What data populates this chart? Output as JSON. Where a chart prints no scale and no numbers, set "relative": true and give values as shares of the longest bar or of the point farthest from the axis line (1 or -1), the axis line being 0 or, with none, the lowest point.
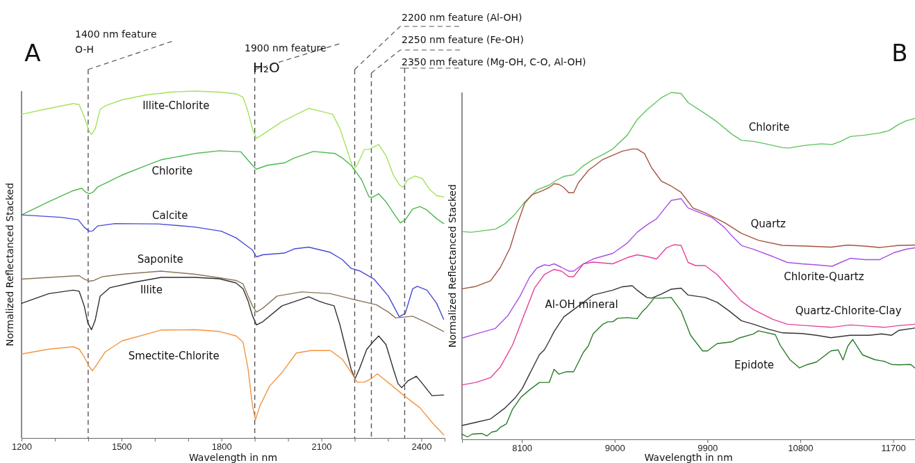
{
  "chart_data": [
    {
      "type": "line",
      "title": "A",
      "xlabel": "Wavelength in nm",
      "ylabel": "Normalized Reflectanced Stacked",
      "relative": true,
      "legend": false,
      "tick_labels": "x",
      "line_style": "solid",
      "xlim": [
        1200,
        2470
      ],
      "xticks": [
        1200,
        {
          "value": 1300,
          "label": null
        },
        {
          "value": 1400,
          "label": null
        },
        1500,
        {
          "value": 1600,
          "label": null
        },
        {
          "value": 1700,
          "label": null
        },
        1800,
        {
          "value": 1900,
          "label": null
        },
        {
          "value": 2000,
          "label": null
        },
        2100,
        {
          "value": 2200,
          "label": null
        },
        {
          "value": 2300,
          "label": null
        },
        2400
      ],
      "ref_lines": [
        {
          "axis": "x",
          "value": 1400,
          "label": "1400 nm feature\nO-H",
          "color": "#555555",
          "line_style": "dashed"
        },
        {
          "axis": "x",
          "value": 1900,
          "label": "1900 nm feature\nH₂O",
          "color": "#555555",
          "line_style": "dashed"
        },
        {
          "axis": "x",
          "value": 2200,
          "label": "2200 nm feature (Al-OH)",
          "color": "#555555",
          "line_style": "dashed"
        },
        {
          "axis": "x",
          "value": 2250,
          "label": "2250 nm feature (Fe-OH)",
          "color": "#555555",
          "line_style": "dashed"
        },
        {
          "axis": "x",
          "value": 2350,
          "label": "2350 nm feature (Mg-OH, C-O, Al-OH)",
          "color": "#555555",
          "line_style": "dashed"
        }
      ],
      "series": [
        {
          "name": "Illite-Chlorite",
          "color": "#a2e35b",
          "x": [
            1200,
            1282,
            1355,
            1373,
            1388,
            1403,
            1410,
            1421,
            1436,
            1450,
            1502,
            1575,
            1648,
            1721,
            1794,
            1844,
            1865,
            1880,
            1893,
            1905,
            1916,
            1982,
            2062,
            2105,
            2134,
            2156,
            2178,
            2196,
            2207,
            2229,
            2243,
            2272,
            2294,
            2316,
            2334,
            2345,
            2359,
            2381,
            2403,
            2425,
            2446,
            2467
          ],
          "values": [
            0.933,
            0.95,
            0.964,
            0.961,
            0.926,
            0.884,
            0.875,
            0.891,
            0.947,
            0.957,
            0.975,
            0.989,
            0.997,
            1.0,
            0.997,
            0.992,
            0.982,
            0.94,
            0.891,
            0.864,
            0.87,
            0.912,
            0.95,
            0.94,
            0.933,
            0.891,
            0.828,
            0.774,
            0.786,
            0.832,
            0.832,
            0.846,
            0.814,
            0.758,
            0.73,
            0.723,
            0.744,
            0.755,
            0.748,
            0.716,
            0.699,
            0.695
          ]
        },
        {
          "name": "Chlorite",
          "color": "#4cb84c",
          "x": [
            1200,
            1282,
            1355,
            1381,
            1392,
            1403,
            1414,
            1428,
            1502,
            1575,
            1619,
            1721,
            1794,
            1858,
            1893,
            1905,
            1938,
            1989,
            2018,
            2076,
            2141,
            2163,
            2192,
            2221,
            2243,
            2254,
            2272,
            2294,
            2323,
            2337,
            2352,
            2374,
            2396,
            2417,
            2446,
            2467
          ],
          "values": [
            0.643,
            0.681,
            0.713,
            0.72,
            0.709,
            0.704,
            0.708,
            0.723,
            0.758,
            0.786,
            0.802,
            0.82,
            0.828,
            0.825,
            0.786,
            0.775,
            0.786,
            0.793,
            0.807,
            0.826,
            0.82,
            0.807,
            0.783,
            0.744,
            0.695,
            0.694,
            0.704,
            0.681,
            0.639,
            0.62,
            0.629,
            0.66,
            0.667,
            0.657,
            0.632,
            0.618
          ]
        },
        {
          "name": "Calcite",
          "color": "#4848d6",
          "x": [
            1200,
            1319,
            1370,
            1388,
            1403,
            1414,
            1428,
            1480,
            1611,
            1721,
            1800,
            1844,
            1873,
            1893,
            1905,
            1924,
            1989,
            2018,
            2062,
            2127,
            2163,
            2189,
            2214,
            2258,
            2301,
            2334,
            2352,
            2374,
            2388,
            2417,
            2446,
            2467
          ],
          "values": [
            0.643,
            0.636,
            0.629,
            0.608,
            0.596,
            0.597,
            0.611,
            0.618,
            0.617,
            0.608,
            0.596,
            0.577,
            0.556,
            0.542,
            0.522,
            0.528,
            0.533,
            0.545,
            0.55,
            0.535,
            0.514,
            0.489,
            0.482,
            0.458,
            0.409,
            0.349,
            0.36,
            0.43,
            0.437,
            0.426,
            0.388,
            0.342
          ]
        },
        {
          "name": "Saponite",
          "color": "#8a7558",
          "x": [
            1200,
            1319,
            1373,
            1388,
            1403,
            1417,
            1443,
            1502,
            1619,
            1721,
            1800,
            1844,
            1865,
            1880,
            1893,
            1905,
            1924,
            1967,
            2040,
            2127,
            2185,
            2265,
            2301,
            2323,
            2352,
            2374,
            2417,
            2467
          ],
          "values": [
            0.458,
            0.465,
            0.468,
            0.458,
            0.452,
            0.454,
            0.465,
            0.472,
            0.481,
            0.472,
            0.461,
            0.454,
            0.444,
            0.409,
            0.381,
            0.363,
            0.374,
            0.409,
            0.421,
            0.416,
            0.402,
            0.384,
            0.363,
            0.346,
            0.349,
            0.351,
            0.332,
            0.307
          ]
        },
        {
          "name": "Illite",
          "color": "#2e2e2e",
          "x": [
            1200,
            1282,
            1355,
            1373,
            1388,
            1399,
            1410,
            1421,
            1436,
            1465,
            1538,
            1619,
            1721,
            1794,
            1844,
            1865,
            1880,
            1893,
            1905,
            1924,
            1982,
            2062,
            2091,
            2112,
            2138,
            2156,
            2174,
            2189,
            2201,
            2214,
            2236,
            2254,
            2272,
            2294,
            2316,
            2330,
            2341,
            2359,
            2385,
            2403,
            2432,
            2467
          ],
          "values": [
            0.388,
            0.416,
            0.426,
            0.423,
            0.381,
            0.332,
            0.312,
            0.339,
            0.409,
            0.433,
            0.449,
            0.463,
            0.463,
            0.459,
            0.447,
            0.43,
            0.395,
            0.353,
            0.326,
            0.335,
            0.381,
            0.407,
            0.395,
            0.388,
            0.381,
            0.325,
            0.255,
            0.199,
            0.171,
            0.199,
            0.255,
            0.276,
            0.294,
            0.269,
            0.199,
            0.157,
            0.145,
            0.164,
            0.178,
            0.157,
            0.122,
            0.124
          ]
        },
        {
          "name": "Smectite-Chlorite",
          "color": "#f29440",
          "x": [
            1200,
            1282,
            1355,
            1373,
            1388,
            1403,
            1413,
            1425,
            1451,
            1502,
            1619,
            1721,
            1794,
            1844,
            1865,
            1880,
            1893,
            1902,
            1916,
            1945,
            1982,
            2025,
            2069,
            2127,
            2163,
            2192,
            2207,
            2229,
            2250,
            2268,
            2308,
            2352,
            2396,
            2432,
            2467
          ],
          "values": [
            0.242,
            0.256,
            0.263,
            0.256,
            0.234,
            0.206,
            0.194,
            0.21,
            0.248,
            0.28,
            0.311,
            0.312,
            0.307,
            0.294,
            0.276,
            0.199,
            0.094,
            0.052,
            0.094,
            0.15,
            0.189,
            0.245,
            0.252,
            0.252,
            0.227,
            0.185,
            0.161,
            0.161,
            0.171,
            0.185,
            0.154,
            0.119,
            0.087,
            0.045,
            0.009
          ]
        }
      ]
    },
    {
      "type": "line",
      "title": "B",
      "xlabel": "Wavelength in nm",
      "ylabel": "Normalized Reflectanced Stacked",
      "relative": true,
      "legend": false,
      "tick_labels": "x",
      "line_style": "solid",
      "xlim": [
        7520,
        11912
      ],
      "xticks": [
        8100,
        9000,
        9900,
        10800,
        11700
      ],
      "series": [
        {
          "name": "Chlorite",
          "color": "#5cc45c",
          "x": [
            7522,
            7607,
            7844,
            7939,
            8034,
            8128,
            8247,
            8365,
            8436,
            8507,
            8602,
            8697,
            8791,
            8886,
            8981,
            9123,
            9218,
            9312,
            9454,
            9549,
            9644,
            9712,
            9877,
            9994,
            10135,
            10229,
            10346,
            10463,
            10628,
            10698,
            10768,
            10862,
            11003,
            11109,
            11191,
            11285,
            11426,
            11566,
            11660,
            11754,
            11825,
            11911
          ],
          "values": [
            0.599,
            0.597,
            0.606,
            0.622,
            0.649,
            0.684,
            0.719,
            0.733,
            0.747,
            0.758,
            0.763,
            0.789,
            0.807,
            0.821,
            0.837,
            0.877,
            0.922,
            0.95,
            0.985,
            1.0,
            0.997,
            0.971,
            0.939,
            0.915,
            0.88,
            0.862,
            0.859,
            0.852,
            0.841,
            0.84,
            0.844,
            0.848,
            0.852,
            0.85,
            0.859,
            0.873,
            0.877,
            0.883,
            0.89,
            0.908,
            0.918,
            0.925
          ]
        },
        {
          "name": "Quartz",
          "color": "#a5523e",
          "x": [
            7522,
            7655,
            7797,
            7892,
            7986,
            8057,
            8128,
            8199,
            8294,
            8365,
            8413,
            8460,
            8507,
            8555,
            8602,
            8649,
            8744,
            8886,
            9076,
            9170,
            9218,
            9289,
            9360,
            9454,
            9549,
            9644,
            9759,
            9877,
            10064,
            10229,
            10393,
            10628,
            10862,
            11097,
            11261,
            11426,
            11566,
            11754,
            11911
          ],
          "values": [
            0.434,
            0.441,
            0.457,
            0.496,
            0.552,
            0.621,
            0.681,
            0.705,
            0.716,
            0.726,
            0.737,
            0.735,
            0.726,
            0.711,
            0.711,
            0.74,
            0.775,
            0.807,
            0.831,
            0.837,
            0.837,
            0.824,
            0.782,
            0.744,
            0.73,
            0.712,
            0.667,
            0.653,
            0.625,
            0.594,
            0.574,
            0.559,
            0.557,
            0.554,
            0.56,
            0.557,
            0.553,
            0.559,
            0.56
          ]
        },
        {
          "name": "Chlorite-Quartz",
          "color": "#a94fe6",
          "x": [
            7522,
            7655,
            7844,
            7963,
            8081,
            8176,
            8247,
            8318,
            8365,
            8413,
            8484,
            8555,
            8602,
            8697,
            8791,
            8981,
            9123,
            9218,
            9312,
            9407,
            9478,
            9549,
            9644,
            9712,
            9830,
            9947,
            10064,
            10135,
            10229,
            10346,
            10534,
            10675,
            10815,
            10956,
            11109,
            11191,
            11285,
            11426,
            11566,
            11707,
            11825,
            11911
          ],
          "values": [
            0.292,
            0.304,
            0.32,
            0.356,
            0.412,
            0.468,
            0.494,
            0.503,
            0.501,
            0.506,
            0.496,
            0.485,
            0.485,
            0.506,
            0.52,
            0.536,
            0.566,
            0.597,
            0.618,
            0.636,
            0.663,
            0.689,
            0.694,
            0.667,
            0.653,
            0.639,
            0.611,
            0.587,
            0.559,
            0.548,
            0.527,
            0.51,
            0.506,
            0.503,
            0.499,
            0.51,
            0.522,
            0.518,
            0.518,
            0.538,
            0.548,
            0.552
          ]
        },
        {
          "name": "Quartz-Chlorite-Clay",
          "color": "#e6409b",
          "x": [
            7522,
            7655,
            7797,
            7892,
            8010,
            8128,
            8223,
            8318,
            8413,
            8484,
            8555,
            8602,
            8697,
            8791,
            8981,
            9123,
            9218,
            9312,
            9407,
            9502,
            9573,
            9644,
            9712,
            9783,
            9877,
            9994,
            10111,
            10229,
            10346,
            10534,
            10675,
            10862,
            11097,
            11285,
            11472,
            11613,
            11754,
            11911
          ],
          "values": [
            0.157,
            0.164,
            0.178,
            0.209,
            0.272,
            0.363,
            0.436,
            0.475,
            0.49,
            0.485,
            0.469,
            0.469,
            0.506,
            0.511,
            0.506,
            0.524,
            0.532,
            0.527,
            0.52,
            0.552,
            0.561,
            0.559,
            0.51,
            0.501,
            0.501,
            0.475,
            0.436,
            0.398,
            0.374,
            0.346,
            0.332,
            0.328,
            0.323,
            0.33,
            0.326,
            0.323,
            0.328,
            0.332
          ]
        },
        {
          "name": "Al-OH mineral",
          "color": "#333333",
          "x": [
            7522,
            7655,
            7797,
            7939,
            8034,
            8105,
            8176,
            8270,
            8318,
            8365,
            8413,
            8507,
            8602,
            8697,
            8791,
            8886,
            8981,
            9076,
            9170,
            9218,
            9312,
            9360,
            9454,
            9549,
            9644,
            9712,
            9877,
            9994,
            10111,
            10229,
            10346,
            10487,
            10628,
            10815,
            10956,
            11097,
            11285,
            11472,
            11590,
            11684,
            11754,
            11911
          ],
          "values": [
            0.04,
            0.049,
            0.059,
            0.091,
            0.119,
            0.147,
            0.189,
            0.244,
            0.258,
            0.283,
            0.311,
            0.353,
            0.374,
            0.395,
            0.416,
            0.423,
            0.43,
            0.44,
            0.443,
            0.43,
            0.409,
            0.407,
            0.419,
            0.433,
            0.436,
            0.416,
            0.409,
            0.395,
            0.37,
            0.342,
            0.332,
            0.318,
            0.307,
            0.305,
            0.3,
            0.293,
            0.3,
            0.3,
            0.304,
            0.3,
            0.314,
            0.321
          ]
        },
        {
          "name": "Epidote",
          "color": "#2b7a2b",
          "x": [
            7522,
            7572,
            7619,
            7714,
            7761,
            7809,
            7856,
            7892,
            7951,
            8010,
            8093,
            8176,
            8270,
            8365,
            8413,
            8460,
            8531,
            8602,
            8697,
            8744,
            8791,
            8886,
            8934,
            8981,
            9028,
            9123,
            9218,
            9265,
            9312,
            9383,
            9454,
            9549,
            9644,
            9736,
            9853,
            9900,
            9994,
            10135,
            10205,
            10346,
            10393,
            10557,
            10604,
            10698,
            10792,
            10862,
            10956,
            11097,
            11167,
            11214,
            11261,
            11308,
            11402,
            11519,
            11613,
            11684,
            11754,
            11871,
            11911
          ],
          "values": [
            0.015,
            0.007,
            0.015,
            0.017,
            0.01,
            0.021,
            0.024,
            0.035,
            0.045,
            0.087,
            0.122,
            0.143,
            0.164,
            0.164,
            0.202,
            0.188,
            0.195,
            0.195,
            0.251,
            0.269,
            0.304,
            0.332,
            0.339,
            0.339,
            0.349,
            0.351,
            0.348,
            0.367,
            0.381,
            0.407,
            0.407,
            0.409,
            0.37,
            0.3,
            0.255,
            0.255,
            0.276,
            0.281,
            0.292,
            0.304,
            0.313,
            0.302,
            0.272,
            0.23,
            0.206,
            0.215,
            0.223,
            0.255,
            0.258,
            0.229,
            0.269,
            0.288,
            0.244,
            0.23,
            0.225,
            0.216,
            0.215,
            0.216,
            0.206
          ]
        }
      ]
    }
  ]
}
